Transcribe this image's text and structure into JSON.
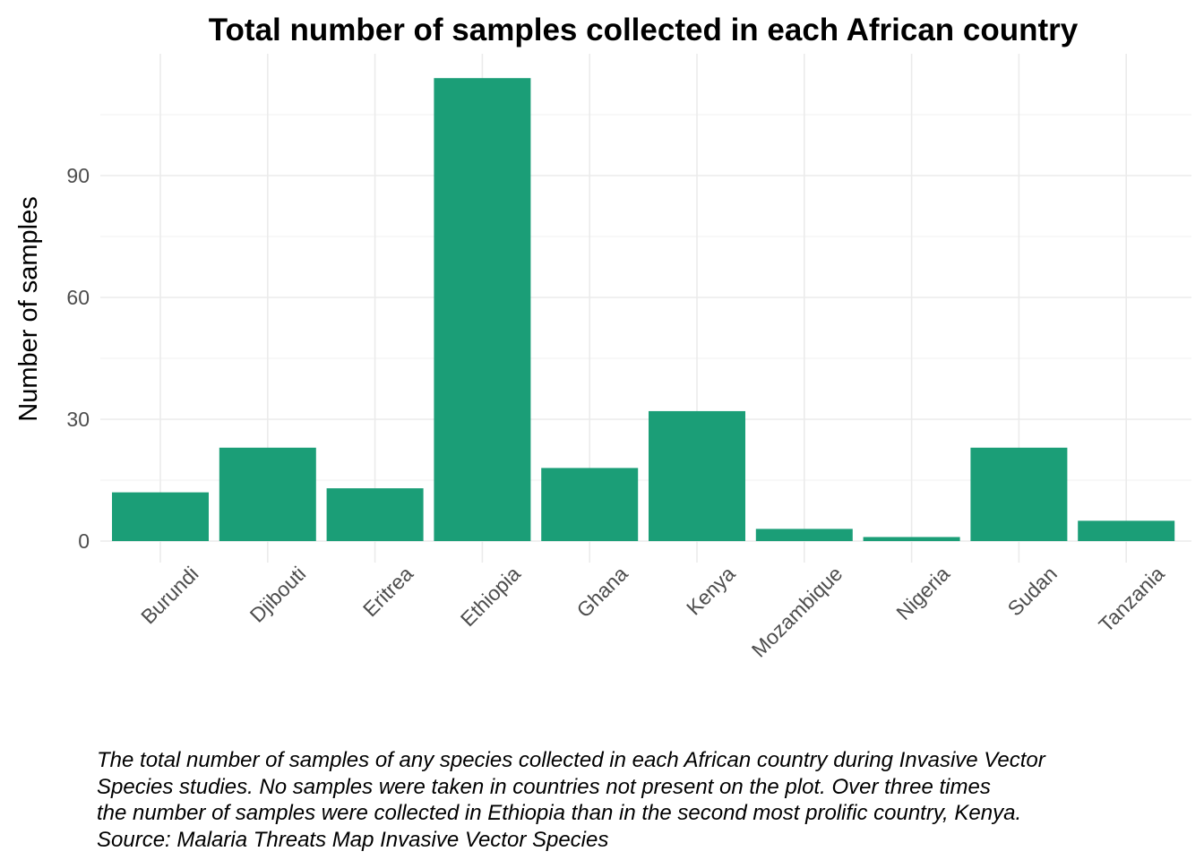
{
  "chart_data": {
    "type": "bar",
    "title": "Total number of samples collected in each African country",
    "xlabel": "",
    "ylabel": "Number of samples",
    "categories": [
      "Burundi",
      "Djibouti",
      "Eritrea",
      "Ethiopia",
      "Ghana",
      "Kenya",
      "Mozambique",
      "Nigeria",
      "Sudan",
      "Tanzania"
    ],
    "values": [
      12,
      23,
      13,
      114,
      18,
      32,
      3,
      1,
      23,
      5
    ],
    "yticks": [
      0,
      30,
      60,
      90
    ],
    "ylim": [
      0,
      120
    ],
    "bar_color": "#1b9e77",
    "grid": true,
    "legend": "none"
  },
  "caption": {
    "lines": [
      "The total number of samples of any species collected in each African country during Invasive Vector",
      "Species studies. No samples were taken in countries not present on the plot. Over three times",
      "the number of samples were collected in Ethiopia than in the second most prolific country, Kenya.",
      "Source: Malaria Threats Map Invasive Vector Species"
    ]
  }
}
